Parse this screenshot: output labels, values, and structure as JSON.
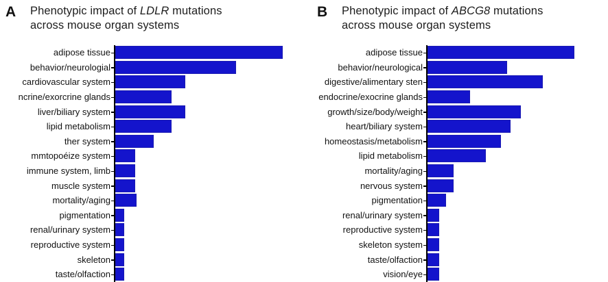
{
  "figure": {
    "bar_color": "#1414cc",
    "axis_color": "#000000",
    "background": "#ffffff"
  },
  "panels": [
    {
      "letter": "A",
      "title": {
        "prefix": "Phenotypic impact of ",
        "gene": "LDLR",
        "suffix": " mutations",
        "line2": "across mouse organ systems"
      }
    },
    {
      "letter": "B",
      "title": {
        "prefix": "Phenotypic impact of ",
        "gene": "ABCG8",
        "suffix": " mutations",
        "line2": "across mouse organ systems"
      }
    }
  ],
  "chart_data": [
    {
      "type": "bar",
      "orientation": "horizontal",
      "title": "Phenotypic impact of LDLR mutations across mouse organ systems",
      "xlabel": "",
      "ylabel": "",
      "x_axis_note": "no numeric axis visible (clipped at bottom); values are relative bar lengths in screen pixels",
      "legend": "none",
      "grid": false,
      "categories": [
        "adipose tissue",
        "behavior/neurologial",
        "cardiovascular system",
        "ncrine/exorcrine glands",
        "liver/biliary system",
        "lipid metabolism",
        "ther system",
        "mmtopoéize system",
        "immune system, limb",
        "muscle system",
        "mortality/aging",
        "pigmentation",
        "renal/urinary system",
        "reproductive system",
        "skeleton",
        "taste/olfaction"
      ],
      "values": [
        244,
        176,
        102,
        82,
        102,
        82,
        56,
        29,
        29,
        29,
        31,
        13,
        13,
        13,
        13,
        13
      ]
    },
    {
      "type": "bar",
      "orientation": "horizontal",
      "title": "Phenotypic impact of ABCG8 mutations across mouse organ systems",
      "xlabel": "",
      "ylabel": "",
      "x_axis_note": "no numeric axis visible (clipped at bottom); values are relative bar lengths in screen pixels",
      "legend": "none",
      "grid": false,
      "categories": [
        "adipose tissue",
        "behavior/neurological",
        "digestive/alimentary sten",
        "endocrine/exocrine glands",
        "growth/size/body/weight",
        "heart/biliary system",
        "homeostasis/metabolism",
        "lipid metabolism",
        "mortality/aging",
        "nervous system",
        "pigmentation",
        "renal/urinary system",
        "reproductive system",
        "skeleton system",
        "taste/olfaction",
        "vision/eye"
      ],
      "values": [
        214,
        116,
        168,
        62,
        136,
        121,
        107,
        85,
        38,
        38,
        27,
        17,
        17,
        17,
        17,
        17
      ]
    }
  ]
}
